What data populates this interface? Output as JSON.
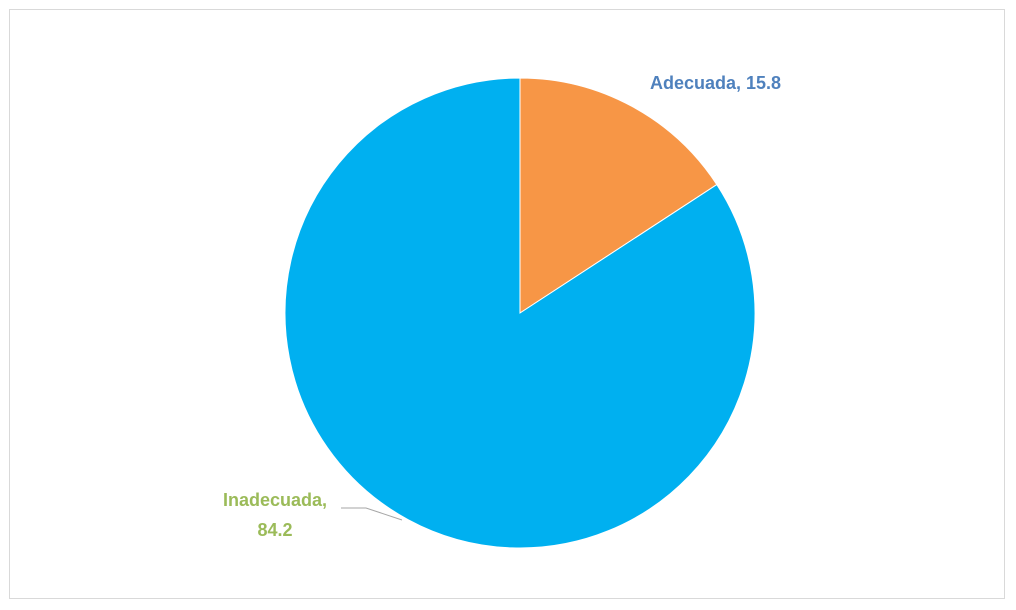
{
  "chart_data": {
    "type": "pie",
    "title": "",
    "slices": [
      {
        "label": "Adecuada",
        "value": 15.8,
        "label_text": "Adecuada, 15.8",
        "color": "#F79646",
        "label_color": "#4F81BD"
      },
      {
        "label": "Inadecuada",
        "value": 84.2,
        "label_lines": [
          "Inadecuada,",
          "84.2"
        ],
        "color": "#00B0F0",
        "label_color": "#9BBB59"
      }
    ],
    "start_angle": "12 o'clock",
    "direction": "clockwise",
    "legend": "none"
  }
}
